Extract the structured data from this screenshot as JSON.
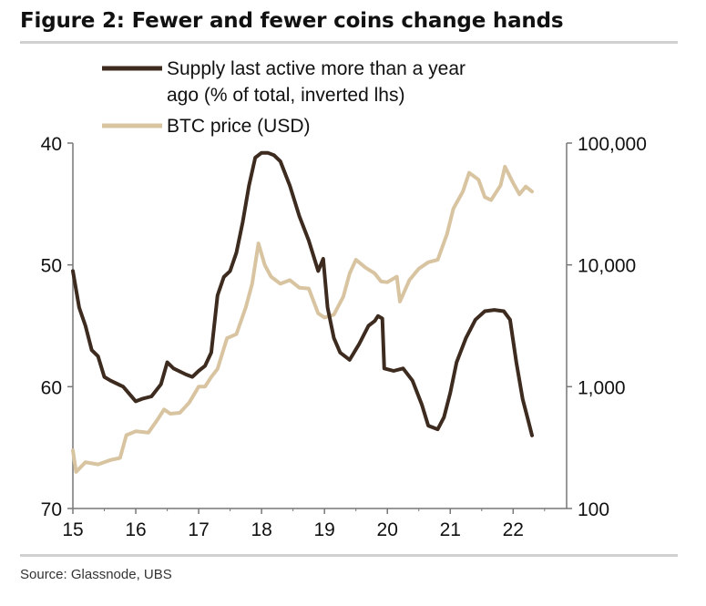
{
  "title": "Figure 2: Fewer and fewer coins change hands",
  "source": "Source: Glassnode, UBS",
  "colors": {
    "supply": "#3d2b1f",
    "price": "#d8c4a0",
    "axis": "#777777",
    "rule": "#d0d0d0"
  },
  "chart_data": {
    "type": "line",
    "x_ticks": [
      "15",
      "16",
      "17",
      "18",
      "19",
      "20",
      "21",
      "22"
    ],
    "xlim": [
      2015,
      2022.85
    ],
    "left_axis": {
      "ticks": [
        "40",
        "50",
        "60",
        "70"
      ],
      "range": [
        40,
        70
      ],
      "inverted": true
    },
    "right_axis": {
      "ticks": [
        "100,000",
        "10,000",
        "1,000",
        "100"
      ],
      "range": [
        100,
        100000
      ],
      "scale": "log"
    },
    "legend": [
      {
        "series": "supply",
        "lines": [
          "Supply last active more than a year",
          "ago (% of total, inverted lhs)"
        ]
      },
      {
        "series": "price",
        "lines": [
          "BTC price (USD)"
        ]
      }
    ],
    "series": [
      {
        "name": "Supply last active more than a year ago (% of total, inverted lhs)",
        "axis": "left",
        "x": [
          2015.0,
          2015.1,
          2015.2,
          2015.3,
          2015.4,
          2015.5,
          2015.6,
          2015.8,
          2016.0,
          2016.1,
          2016.25,
          2016.4,
          2016.5,
          2016.6,
          2016.8,
          2016.9,
          2017.0,
          2017.1,
          2017.2,
          2017.3,
          2017.4,
          2017.5,
          2017.6,
          2017.7,
          2017.8,
          2017.9,
          2018.0,
          2018.1,
          2018.2,
          2018.3,
          2018.45,
          2018.6,
          2018.75,
          2018.9,
          2018.98,
          2019.05,
          2019.15,
          2019.25,
          2019.4,
          2019.55,
          2019.7,
          2019.8,
          2019.85,
          2019.92,
          2019.95,
          2020.1,
          2020.25,
          2020.4,
          2020.55,
          2020.65,
          2020.8,
          2020.9,
          2021.0,
          2021.1,
          2021.25,
          2021.4,
          2021.55,
          2021.7,
          2021.85,
          2021.95,
          2022.05,
          2022.15,
          2022.25,
          2022.3
        ],
        "values": [
          50.5,
          53.5,
          55.0,
          57.0,
          57.5,
          59.2,
          59.5,
          60.0,
          61.2,
          61.0,
          60.8,
          59.8,
          58.0,
          58.5,
          59.0,
          59.2,
          58.7,
          58.3,
          57.2,
          52.5,
          51.0,
          50.5,
          49.0,
          46.5,
          43.5,
          41.2,
          40.8,
          40.8,
          41.0,
          41.5,
          43.5,
          46.0,
          48.0,
          50.5,
          49.5,
          53.5,
          56.0,
          57.2,
          57.8,
          56.5,
          55.0,
          54.6,
          54.2,
          54.4,
          58.5,
          58.7,
          58.5,
          59.5,
          61.5,
          63.2,
          63.5,
          62.5,
          60.5,
          58.0,
          56.0,
          54.5,
          53.8,
          53.7,
          53.8,
          54.5,
          58.0,
          61.0,
          63.0,
          64.0
        ]
      },
      {
        "name": "BTC price (USD)",
        "axis": "right",
        "x": [
          2015.0,
          2015.05,
          2015.2,
          2015.4,
          2015.6,
          2015.75,
          2015.85,
          2016.0,
          2016.2,
          2016.35,
          2016.45,
          2016.55,
          2016.7,
          2016.85,
          2017.0,
          2017.1,
          2017.2,
          2017.3,
          2017.45,
          2017.6,
          2017.75,
          2017.85,
          2017.95,
          2018.05,
          2018.15,
          2018.3,
          2018.45,
          2018.6,
          2018.75,
          2018.9,
          2019.0,
          2019.15,
          2019.3,
          2019.4,
          2019.5,
          2019.65,
          2019.8,
          2019.9,
          2020.0,
          2020.15,
          2020.2,
          2020.35,
          2020.5,
          2020.65,
          2020.8,
          2020.95,
          2021.05,
          2021.2,
          2021.3,
          2021.45,
          2021.55,
          2021.65,
          2021.8,
          2021.87,
          2022.0,
          2022.1,
          2022.2,
          2022.3
        ],
        "values": [
          300,
          200,
          240,
          230,
          250,
          260,
          400,
          430,
          420,
          540,
          650,
          600,
          610,
          740,
          1000,
          1000,
          1200,
          1400,
          2500,
          2700,
          4500,
          7000,
          15000,
          10000,
          8000,
          7000,
          7500,
          6500,
          6400,
          4000,
          3700,
          3900,
          5500,
          8500,
          11000,
          9500,
          8500,
          7300,
          7200,
          8000,
          5000,
          7500,
          9300,
          10500,
          11000,
          18000,
          29000,
          40000,
          57000,
          50000,
          36000,
          34000,
          45000,
          64000,
          47000,
          38000,
          44000,
          40000
        ]
      }
    ]
  }
}
